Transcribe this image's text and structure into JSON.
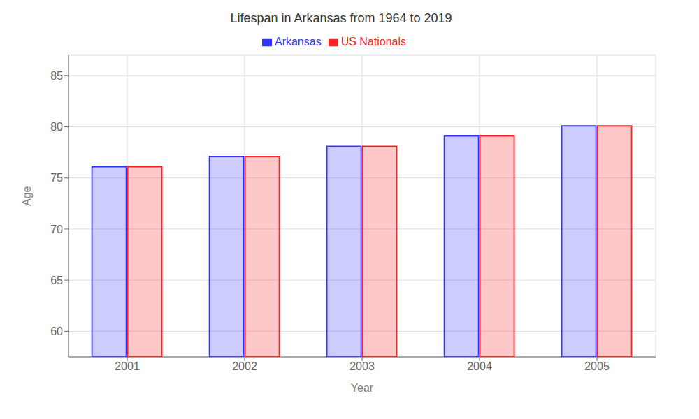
{
  "chart_data": {
    "type": "bar",
    "title": "Lifespan in Arkansas from 1964 to 2019",
    "x_label": "Year",
    "y_label": "Age",
    "categories": [
      "2001",
      "2002",
      "2003",
      "2004",
      "2005"
    ],
    "series": [
      {
        "name": "Arkansas",
        "color": "#3333ff",
        "values": [
          76.1,
          77.1,
          78.1,
          79.1,
          80.1
        ]
      },
      {
        "name": "US Nationals",
        "color": "#ff2222",
        "values": [
          76.1,
          77.1,
          78.1,
          79.1,
          80.1
        ]
      }
    ],
    "ylim": [
      57.5,
      87
    ],
    "yticks": [
      60,
      65,
      70,
      75,
      80,
      85
    ],
    "grid": true,
    "legend": "top"
  }
}
